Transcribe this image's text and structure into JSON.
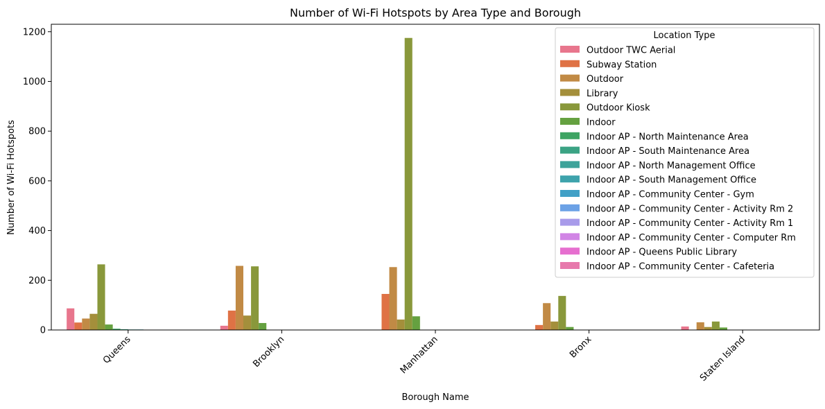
{
  "chart_data": {
    "type": "bar",
    "title": "Number of Wi-Fi Hotspots by Area Type and Borough",
    "xlabel": "Borough Name",
    "ylabel": "Number of Wi-Fi Hotspots",
    "ylim": [
      0,
      1230
    ],
    "yticks": [
      0,
      200,
      400,
      600,
      800,
      1000,
      1200
    ],
    "categories": [
      "Queens",
      "Brooklyn",
      "Manhattan",
      "Bronx",
      "Staten Island"
    ],
    "legend": {
      "title": "Location Type",
      "placement": "top-right"
    },
    "grid": false,
    "series": [
      {
        "name": "Outdoor TWC Aerial",
        "color": "#e8768d",
        "values": [
          87,
          17,
          0,
          0,
          14
        ]
      },
      {
        "name": "Subway Station",
        "color": "#df7245",
        "values": [
          30,
          78,
          145,
          20,
          0
        ]
      },
      {
        "name": "Outdoor",
        "color": "#c18a45",
        "values": [
          46,
          258,
          253,
          108,
          31
        ]
      },
      {
        "name": "Library",
        "color": "#a48f3b",
        "values": [
          65,
          58,
          42,
          34,
          12
        ]
      },
      {
        "name": "Outdoor Kiosk",
        "color": "#89983b",
        "values": [
          264,
          256,
          1175,
          137,
          34
        ]
      },
      {
        "name": "Indoor",
        "color": "#65a140",
        "values": [
          22,
          28,
          55,
          12,
          10
        ]
      },
      {
        "name": "Indoor AP - North Maintenance Area",
        "color": "#3ea463",
        "values": [
          5,
          1,
          0,
          1,
          0
        ]
      },
      {
        "name": "Indoor AP - South Maintenance Area",
        "color": "#3ba384",
        "values": [
          3,
          1,
          0,
          1,
          0
        ]
      },
      {
        "name": "Indoor AP - North Management Office",
        "color": "#3da39a",
        "values": [
          2,
          1,
          0,
          1,
          0
        ]
      },
      {
        "name": "Indoor AP - South Management Office",
        "color": "#3ea3ac",
        "values": [
          2,
          1,
          0,
          1,
          0
        ]
      },
      {
        "name": "Indoor AP - Community Center - Gym",
        "color": "#41a0c6",
        "values": [
          1,
          1,
          0,
          0,
          0
        ]
      },
      {
        "name": "Indoor AP - Community Center - Activity Rm 2",
        "color": "#6ca2e6",
        "values": [
          1,
          1,
          0,
          0,
          0
        ]
      },
      {
        "name": "Indoor AP - Community Center - Activity Rm 1",
        "color": "#a89bea",
        "values": [
          1,
          1,
          0,
          0,
          0
        ]
      },
      {
        "name": "Indoor AP - Community Center - Computer Rm",
        "color": "#d185e5",
        "values": [
          1,
          1,
          0,
          0,
          0
        ]
      },
      {
        "name": "Indoor AP - Queens Public Library",
        "color": "#e66fcf",
        "values": [
          1,
          0,
          0,
          0,
          0
        ]
      },
      {
        "name": "Indoor AP - Community Center - Cafeteria",
        "color": "#e779ac",
        "values": [
          1,
          1,
          0,
          0,
          0
        ]
      }
    ]
  }
}
